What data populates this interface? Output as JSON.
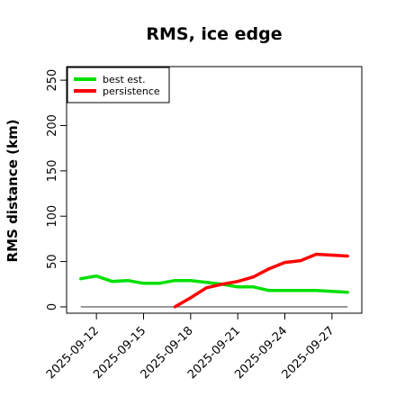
{
  "chart_data": {
    "type": "line",
    "title": "RMS, ice edge",
    "xlabel": "",
    "ylabel": "RMS distance (km)",
    "x_tick_labels": [
      "2025-09-12",
      "2025-09-15",
      "2025-09-18",
      "2025-09-21",
      "2025-09-24",
      "2025-09-27"
    ],
    "x_tick_days": [
      12,
      15,
      18,
      21,
      24,
      27
    ],
    "xlim": [
      10.1,
      28.9
    ],
    "ylim": [
      -7,
      265
    ],
    "y_ticks": [
      0,
      50,
      100,
      150,
      200,
      250
    ],
    "grid": false,
    "legend_position": "top-left",
    "baseline": {
      "value": 0,
      "from_day": 11,
      "to_day": 28,
      "color": "#6b6b6b"
    },
    "series": [
      {
        "name": "best est.",
        "color": "#00e000",
        "x": [
          11,
          12,
          13,
          14,
          15,
          16,
          17,
          18,
          19,
          20,
          21,
          22,
          23,
          24,
          25,
          26,
          27,
          28
        ],
        "y": [
          31,
          34,
          28,
          29,
          26,
          26,
          29,
          29,
          27,
          25,
          22,
          22,
          18,
          18,
          18,
          18,
          17,
          16
        ]
      },
      {
        "name": "persistence",
        "color": "#ff0000",
        "x": [
          17,
          18,
          19,
          20,
          21,
          22,
          23,
          24,
          25,
          26,
          27,
          28
        ],
        "y": [
          0,
          10,
          21,
          25,
          28,
          33,
          42,
          49,
          51,
          58,
          57,
          56
        ]
      }
    ]
  }
}
